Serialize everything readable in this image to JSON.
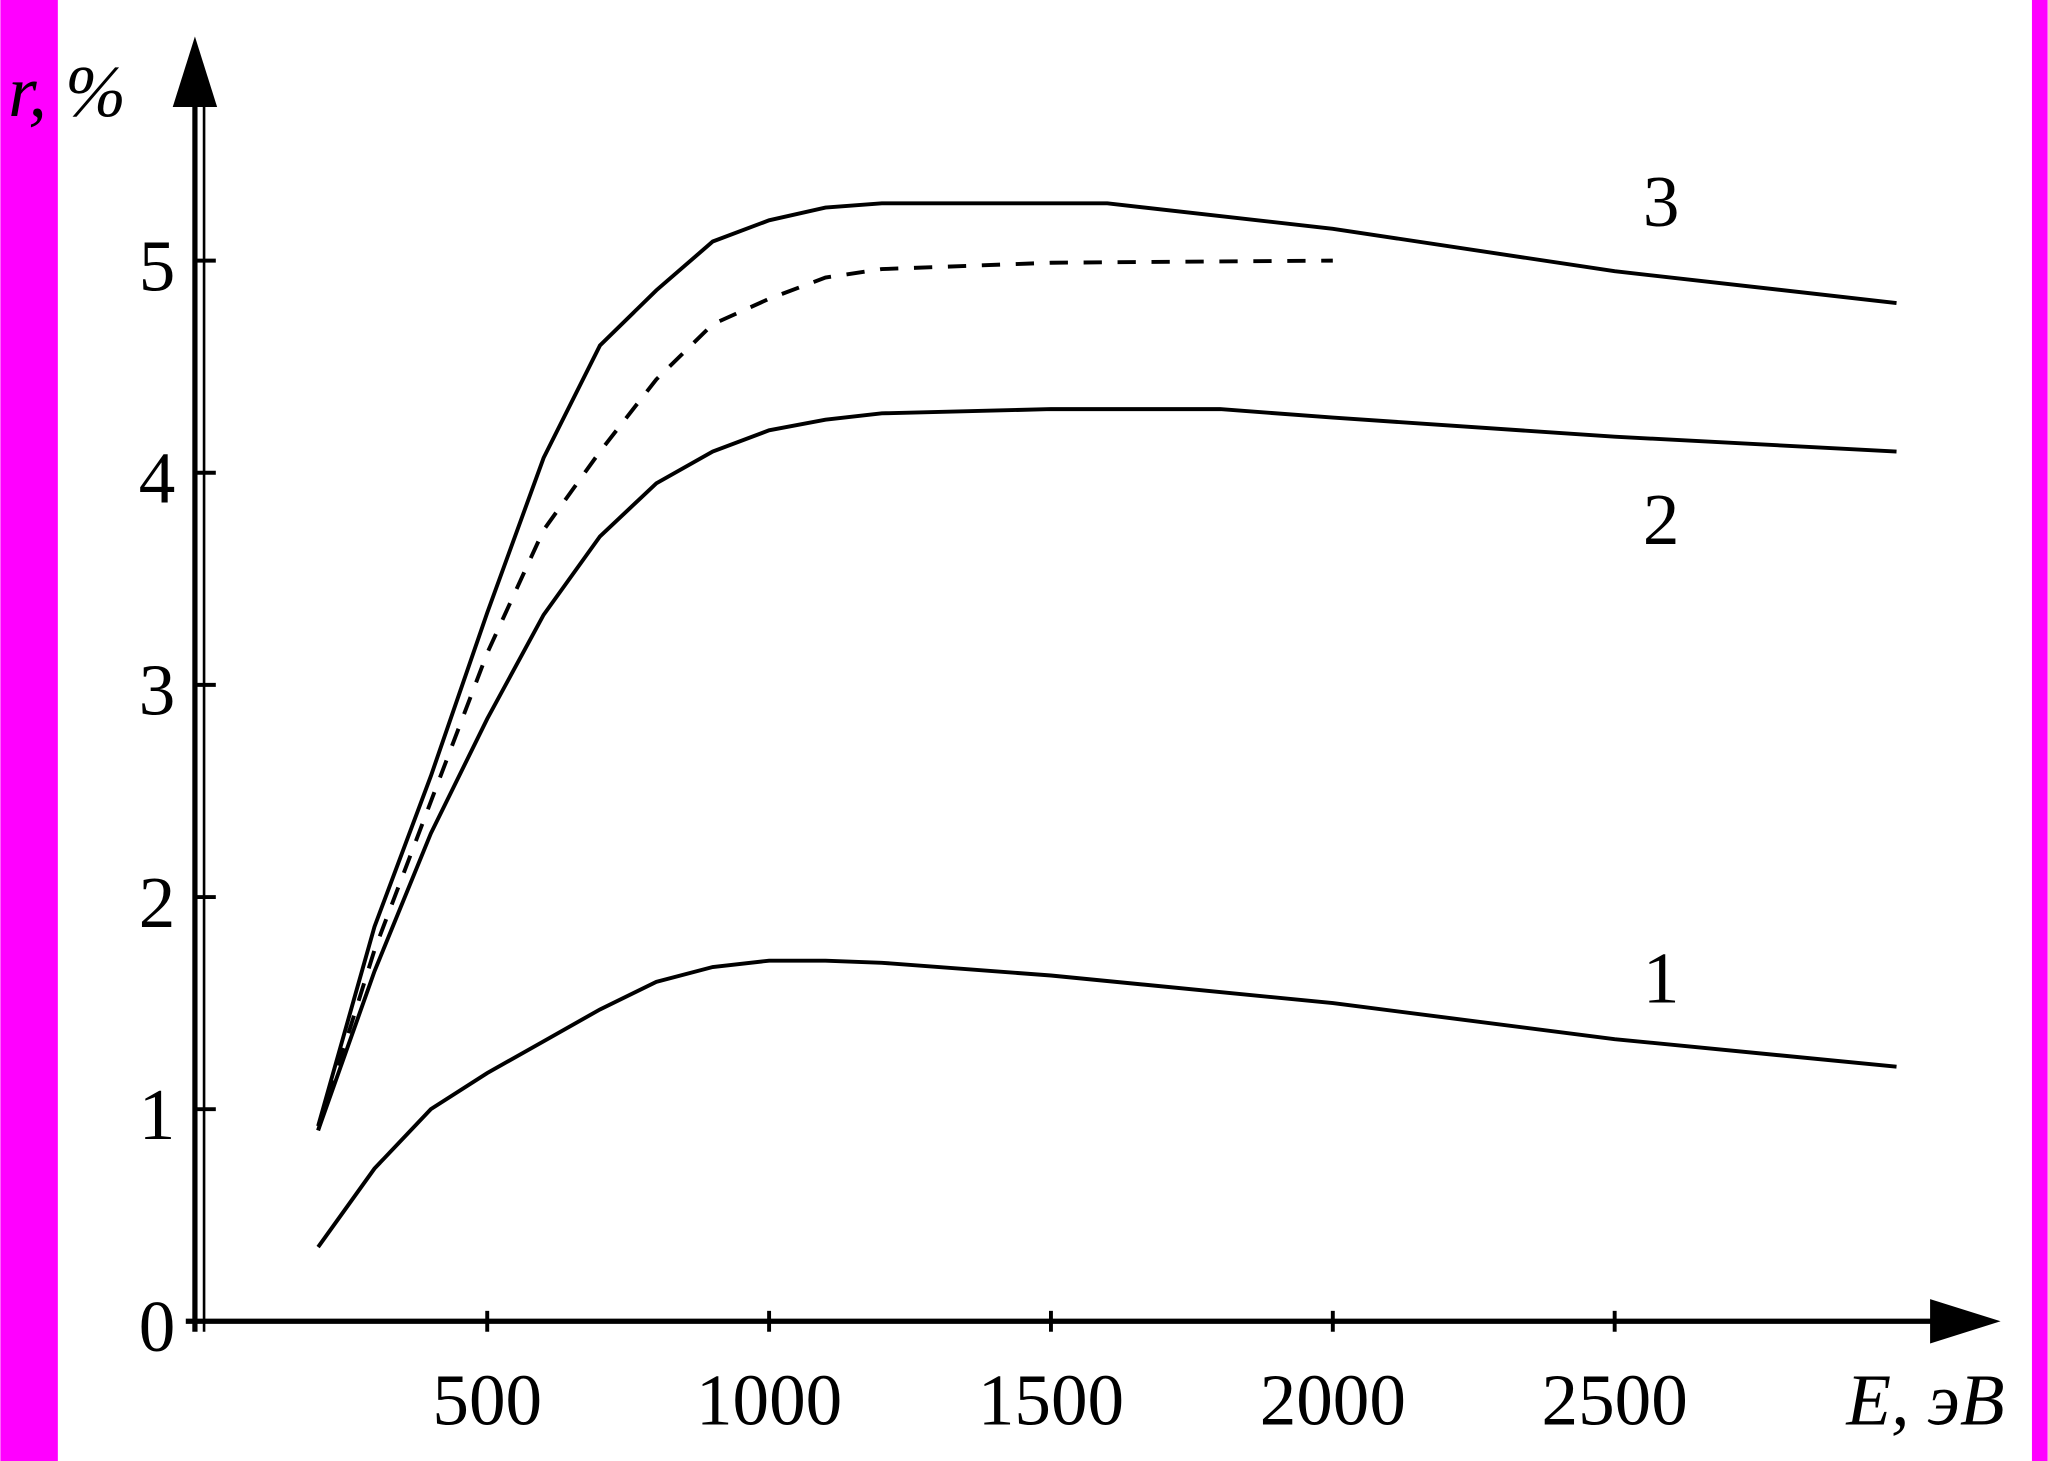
{
  "chart_data": {
    "type": "line",
    "x_label": "E, эВ",
    "y_label": "r, %",
    "xlim": [
      0,
      3180
    ],
    "ylim": [
      0,
      6.05
    ],
    "xticks": [
      500,
      1000,
      1500,
      2000,
      2500
    ],
    "yticks": [
      0,
      1,
      2,
      3,
      4,
      5
    ],
    "series": [
      {
        "name": "1",
        "color": "#000",
        "dashed": false,
        "x": [
          200,
          300,
          400,
          500,
          600,
          700,
          800,
          900,
          1000,
          1100,
          1200,
          1500,
          2000,
          2500,
          3000
        ],
        "values": [
          0.35,
          0.72,
          1.0,
          1.17,
          1.32,
          1.47,
          1.6,
          1.67,
          1.7,
          1.7,
          1.69,
          1.63,
          1.5,
          1.33,
          1.2
        ]
      },
      {
        "name": "2",
        "color": "#000",
        "dashed": false,
        "x": [
          200,
          300,
          400,
          500,
          600,
          700,
          800,
          900,
          1000,
          1100,
          1200,
          1500,
          1800,
          2000,
          2500,
          3000
        ],
        "values": [
          0.9,
          1.65,
          2.3,
          2.84,
          3.33,
          3.7,
          3.95,
          4.1,
          4.2,
          4.25,
          4.28,
          4.3,
          4.3,
          4.26,
          4.17,
          4.1
        ]
      },
      {
        "color": "#000",
        "dashed": true,
        "x": [
          200,
          300,
          400,
          500,
          600,
          700,
          800,
          900,
          1000,
          1100,
          1200,
          1500,
          2000
        ],
        "values": [
          0.9,
          1.75,
          2.45,
          3.15,
          3.73,
          4.1,
          4.44,
          4.7,
          4.82,
          4.92,
          4.96,
          4.99,
          5.0
        ]
      },
      {
        "name": "3",
        "color": "#000",
        "dashed": false,
        "x": [
          200,
          300,
          400,
          500,
          600,
          700,
          800,
          900,
          1000,
          1100,
          1200,
          1600,
          2000,
          2500,
          3000
        ],
        "values": [
          0.92,
          1.86,
          2.57,
          3.34,
          4.07,
          4.6,
          4.86,
          5.09,
          5.19,
          5.25,
          5.27,
          5.27,
          5.15,
          4.95,
          4.8
        ]
      }
    ]
  }
}
